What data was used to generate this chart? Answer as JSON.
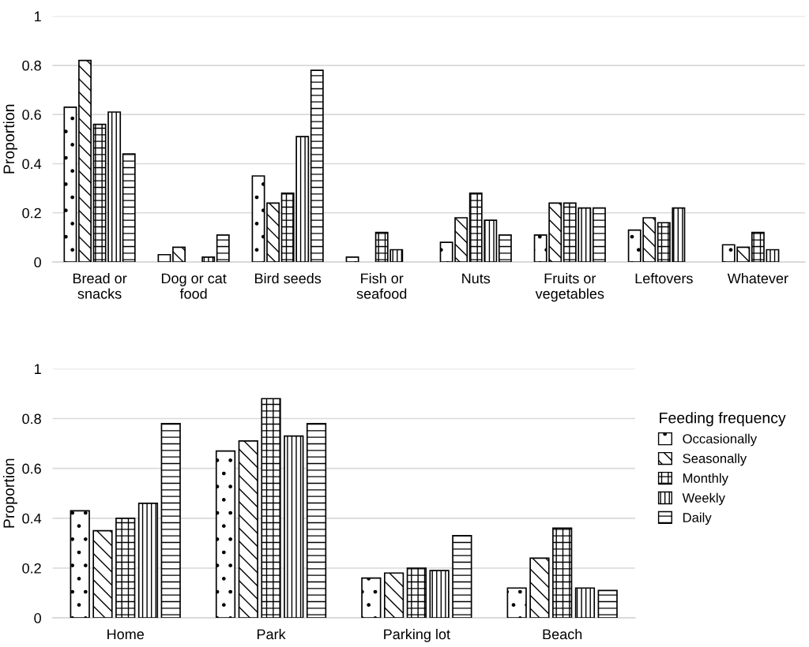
{
  "chart_data": [
    {
      "type": "bar",
      "ylabel": "Proportion",
      "categories": [
        "Bread or\nsnacks",
        "Dog or cat\nfood",
        "Bird seeds",
        "Fish or\nseafood",
        "Nuts",
        "Fruits or\nvegetables",
        "Leftovers",
        "Whatever"
      ],
      "series": [
        {
          "color": "#000000",
          "values": [
            0.63,
            0.03,
            0.35,
            0.02,
            0.08,
            0.11,
            0.13,
            0.07
          ]
        },
        {
          "color": "#000000",
          "values": [
            0.82,
            0.06,
            0.24,
            null,
            0.18,
            0.24,
            0.18,
            0.06
          ]
        },
        {
          "color": "#000000",
          "values": [
            0.56,
            null,
            0.28,
            0.12,
            0.28,
            0.24,
            0.16,
            0.12
          ]
        },
        {
          "color": "#000000",
          "values": [
            0.61,
            0.02,
            0.51,
            0.05,
            0.17,
            0.22,
            0.22,
            0.05
          ]
        },
        {
          "color": "#000000",
          "values": [
            0.44,
            0.11,
            0.78,
            null,
            0.11,
            0.22,
            null,
            null
          ]
        }
      ],
      "ylim": [
        0,
        1
      ],
      "yticks": [
        0,
        0.2,
        0.4,
        0.6,
        0.8,
        1
      ],
      "grid": "y"
    },
    {
      "type": "bar",
      "ylabel": "Proportion",
      "legend_title": "Feeding frequency",
      "categories": [
        "Home",
        "Park",
        "Parking lot",
        "Beach"
      ],
      "series": [
        {
          "name": "Occasionally",
          "color": "#000000",
          "values": [
            0.43,
            0.67,
            0.16,
            0.12
          ]
        },
        {
          "name": "Seasonally",
          "color": "#000000",
          "values": [
            0.35,
            0.71,
            0.18,
            0.24
          ]
        },
        {
          "name": "Monthly",
          "color": "#000000",
          "values": [
            0.4,
            0.88,
            0.2,
            0.36
          ]
        },
        {
          "name": "Weekly",
          "color": "#000000",
          "values": [
            0.46,
            0.73,
            0.19,
            0.12
          ]
        },
        {
          "name": "Daily",
          "color": "#000000",
          "values": [
            0.78,
            0.78,
            0.33,
            0.11
          ]
        }
      ],
      "ylim": [
        0,
        1
      ],
      "yticks": [
        0,
        0.2,
        0.4,
        0.6,
        0.8,
        1
      ],
      "grid": "y",
      "legend": "right"
    }
  ]
}
